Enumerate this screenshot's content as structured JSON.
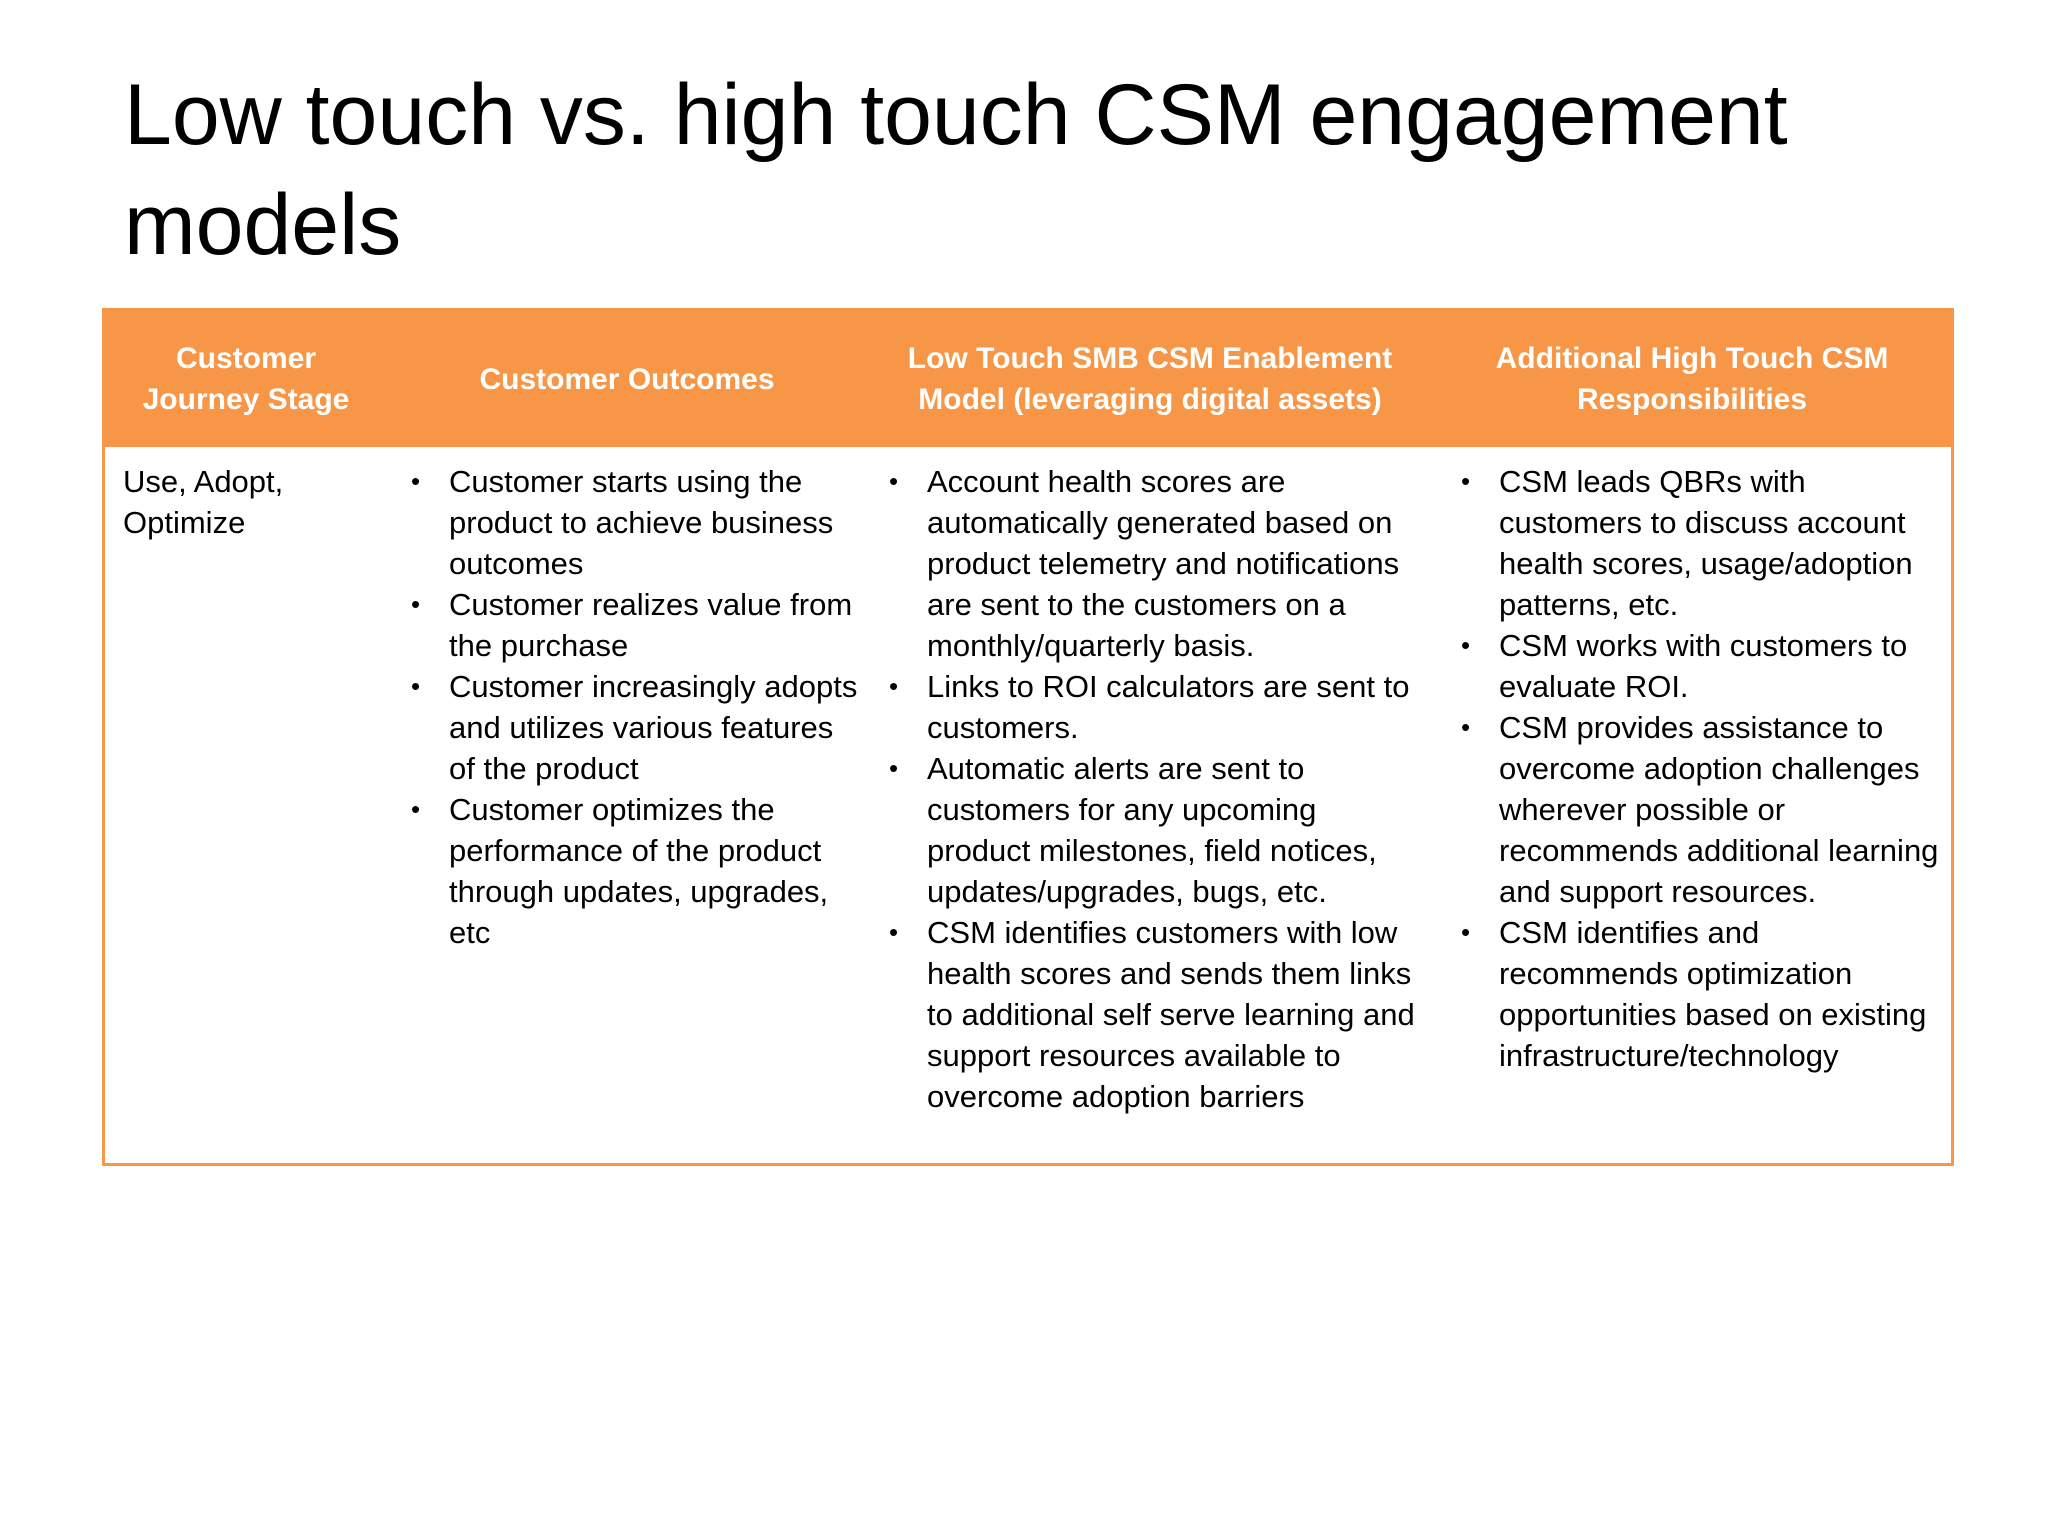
{
  "slide": {
    "title": "Low touch vs. high touch CSM engagement models"
  },
  "table": {
    "header": {
      "stage": "Customer Journey Stage",
      "outcomes": "Customer Outcomes",
      "low_touch": "Low Touch SMB CSM Enablement Model (leveraging digital assets)",
      "high_touch": "Additional High Touch CSM Responsibilities"
    },
    "header_color": "#f79646",
    "row": {
      "stage": "Use, Adopt, Optimize",
      "outcomes": [
        "Customer starts using the product to achieve business outcomes",
        "Customer realizes value from the purchase",
        "Customer increasingly adopts and utilizes various features of the product",
        "Customer optimizes the performance of the product through updates, upgrades, etc"
      ],
      "low_touch": [
        "Account health scores are automatically generated based on product telemetry and notifications are sent to the customers on a monthly/quarterly basis.",
        "Links to ROI calculators are sent to customers.",
        "Automatic alerts are sent to customers for any upcoming product milestones, field notices, updates/upgrades, bugs, etc.",
        "CSM identifies customers with low health scores and sends them links to additional self serve learning and support resources available to overcome adoption barriers"
      ],
      "high_touch": [
        "CSM leads QBRs with customers to discuss account health scores, usage/adoption patterns, etc.",
        "CSM works with customers to evaluate ROI.",
        "CSM provides assistance to overcome adoption challenges wherever possible or recommends additional learning and support resources.",
        "CSM identifies and recommends optimization opportunities based on existing infrastructure/technology"
      ]
    }
  }
}
